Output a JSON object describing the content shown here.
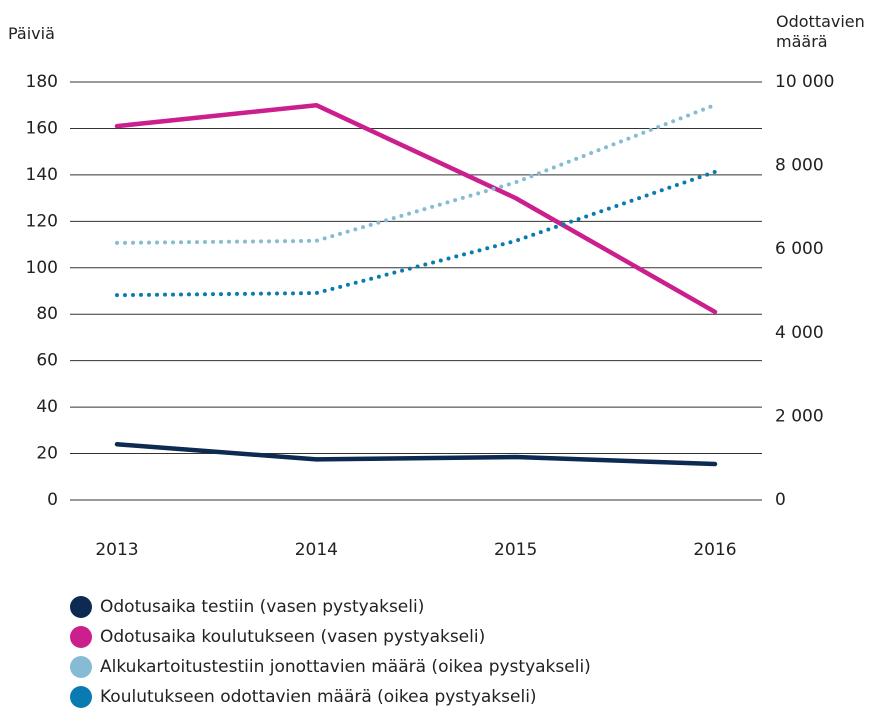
{
  "chart_data": {
    "type": "line",
    "ylabel": "Päiviä",
    "y2label": "Odottavien määrä",
    "categories": [
      "2013",
      "2014",
      "2015",
      "2016"
    ],
    "ylim": [
      0,
      180
    ],
    "yticks": [
      0,
      20,
      40,
      60,
      80,
      100,
      120,
      140,
      160,
      180
    ],
    "y2lim": [
      0,
      10000
    ],
    "y2ticks": [
      0,
      {
        "value": 2000,
        "label": "2 000"
      },
      {
        "value": 4000,
        "label": "4 000"
      },
      {
        "value": 6000,
        "label": "6 000"
      },
      {
        "value": 8000,
        "label": "8 000"
      },
      {
        "value": 10000,
        "label": "10 000"
      }
    ],
    "grid": true,
    "series": [
      {
        "name": "Odotusaika testiin (vasen pystyakseli)",
        "color": "#0d2a52",
        "style": "solid",
        "values": [
          24,
          17.5,
          18.5,
          15.5
        ]
      },
      {
        "name": "Odotusaika koulutukseen (vasen pystyakseli)",
        "color": "#cc1f8e",
        "style": "solid",
        "values": [
          161,
          170,
          130,
          81
        ]
      },
      {
        "name": "Alkukartoitustestiin jonottavien määrä (oikea pystyakseli)",
        "color": "#85bcd3",
        "style": "dotted",
        "axis": "y2",
        "values": [
          6150,
          6200,
          7600,
          9450
        ]
      },
      {
        "name": "Koulutukseen odottavien määrä (oikea pystyakseli)",
        "color": "#0a7bb0",
        "style": "dotted",
        "axis": "y2",
        "values": [
          4900,
          4950,
          6200,
          7850
        ]
      }
    ]
  }
}
